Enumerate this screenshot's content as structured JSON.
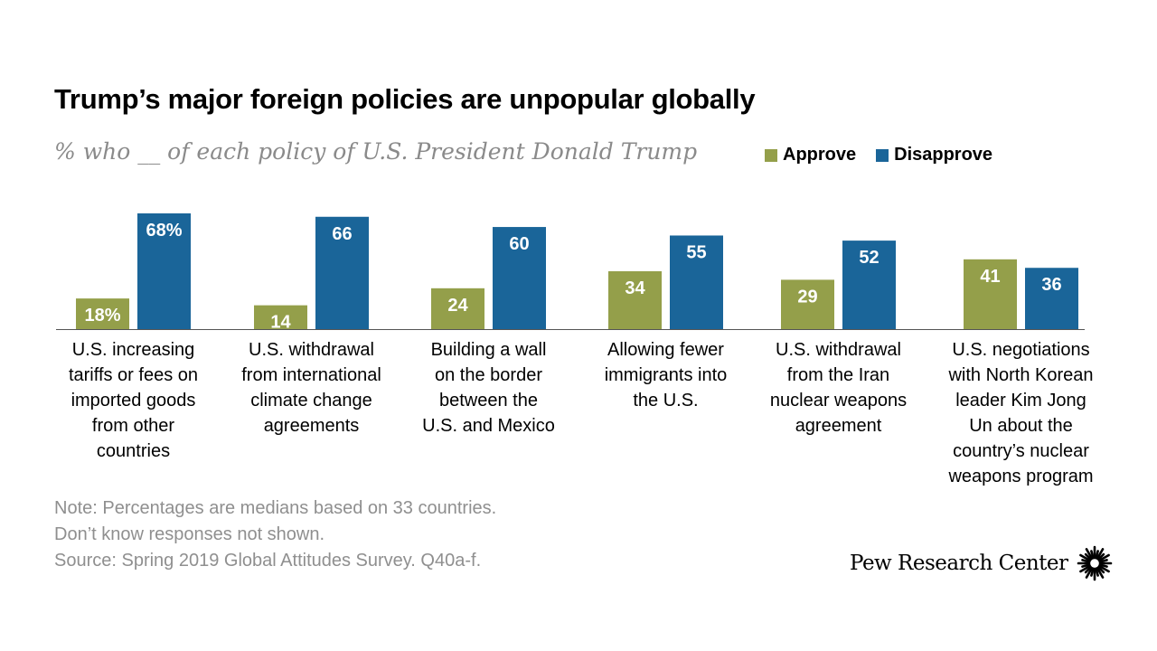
{
  "title": "Trump’s major foreign policies are unpopular globally",
  "subtitle": "% who __ of each policy of U.S. President Donald Trump",
  "legend": [
    {
      "label": "Approve",
      "color": "#949F4A"
    },
    {
      "label": "Disapprove",
      "color": "#1A6599"
    }
  ],
  "chart_data": {
    "type": "bar",
    "categories": [
      "U.S. increasing\ntariffs or fees on\nimported goods\nfrom other\ncountries",
      "U.S. withdrawal\nfrom international\nclimate change\nagreements",
      "Building a wall\non the border\nbetween the\nU.S. and Mexico",
      "Allowing fewer\nimmigrants into\nthe U.S.",
      "U.S. withdrawal\nfrom the Iran\nnuclear weapons\nagreement",
      "U.S. negotiations\nwith North Korean\nleader Kim Jong\nUn about the\ncountry’s nuclear\nweapons program"
    ],
    "series": [
      {
        "name": "Approve",
        "values": [
          18,
          14,
          24,
          34,
          29,
          41
        ],
        "color": "#949F4A"
      },
      {
        "name": "Disapprove",
        "values": [
          68,
          66,
          60,
          55,
          52,
          36
        ],
        "color": "#1A6599"
      }
    ],
    "value_labels": {
      "Approve": [
        "18%",
        "14",
        "24",
        "34",
        "29",
        "41"
      ],
      "Disapprove": [
        "68%",
        "66",
        "60",
        "55",
        "52",
        "36"
      ]
    },
    "ylim": [
      0,
      70
    ],
    "xlabel": "",
    "ylabel": "",
    "grid": false,
    "legend_position": "top-right"
  },
  "notes": [
    "Note: Percentages are medians based on 33 countries.",
    "Don’t know responses not shown.",
    "Source: Spring 2019 Global Attitudes Survey. Q40a-f."
  ],
  "brand": {
    "name": "Pew Research Center",
    "logo_icon": "pew-sunburst-icon"
  }
}
